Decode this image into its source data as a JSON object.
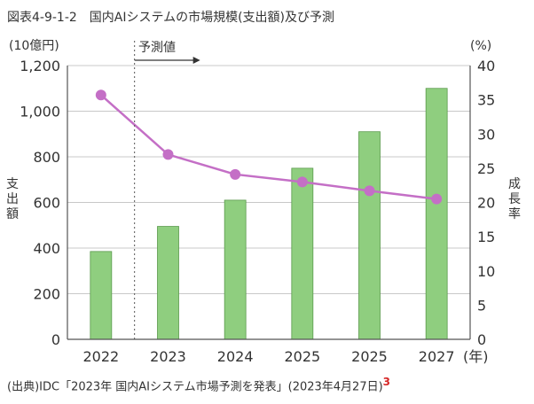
{
  "figure_title": "図表4-9-1-2　国内AIシステムの市場規模(支出額)及び予測",
  "source_text": "(出典)IDC「2023年 国内AIシステム市場予測を発表」(2023年4月27日)",
  "source_footnote": "3",
  "colors": {
    "bar": "#8fce7f",
    "bar_stroke": "#5a9a4c",
    "line": "#c46fc6",
    "marker": "#c46fc6"
  },
  "chart_data": {
    "type": "bar",
    "categories": [
      "2022",
      "2023",
      "2024",
      "2025",
      "2025",
      "2027"
    ],
    "x_unit": "(年)",
    "forecast_label": "予測値",
    "forecast_start_index": 1,
    "series": [
      {
        "name": "支出額",
        "type": "bar",
        "axis": "left",
        "values": [
          385,
          495,
          610,
          750,
          910,
          1100
        ]
      },
      {
        "name": "成長率",
        "type": "line",
        "axis": "right",
        "values": [
          35.7,
          27.0,
          24.1,
          23.0,
          21.7,
          20.5
        ]
      }
    ],
    "y_left": {
      "label": "支出額",
      "unit": "(10億円)",
      "ylim": [
        0,
        1200
      ],
      "ticks": [
        "0",
        "200",
        "400",
        "600",
        "800",
        "1,000",
        "1,200"
      ]
    },
    "y_right": {
      "label": "成長率",
      "unit": "(%)",
      "ylim": [
        0,
        40
      ],
      "ticks": [
        "0",
        "5",
        "10",
        "15",
        "20",
        "25",
        "30",
        "35",
        "40"
      ]
    },
    "grid": true
  }
}
